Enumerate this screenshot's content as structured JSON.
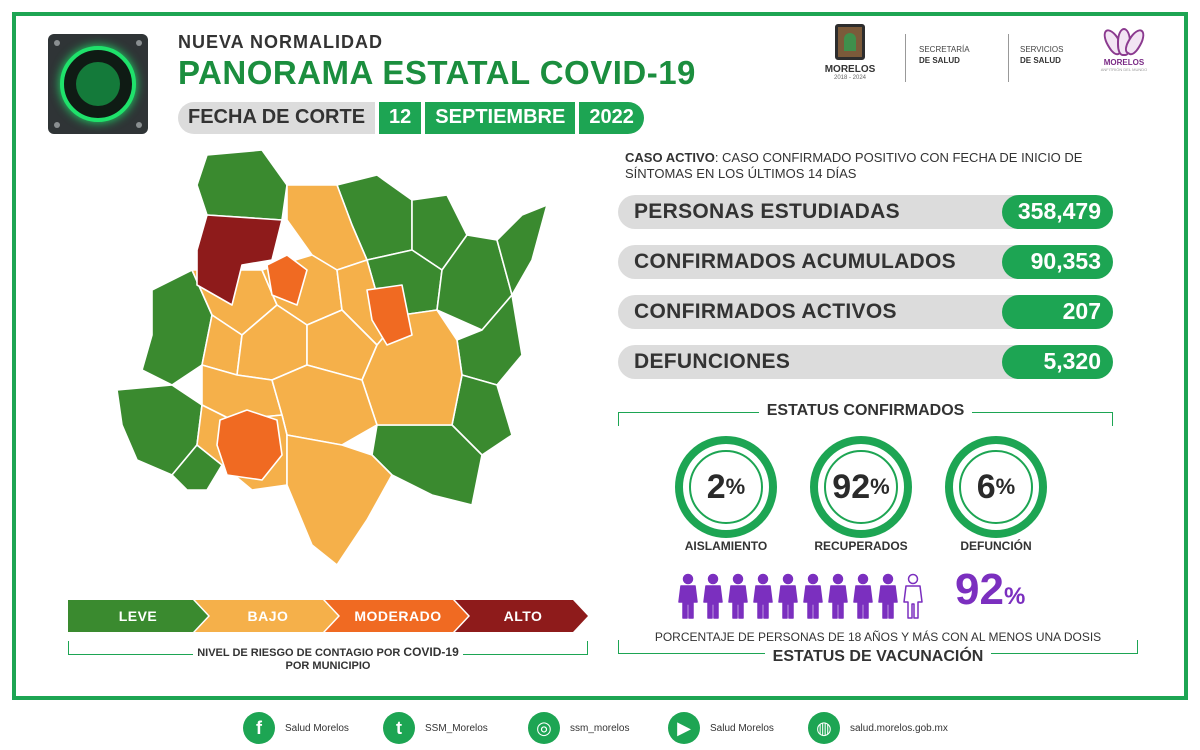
{
  "header": {
    "kicker": "NUEVA  NORMALIDAD",
    "title": "PANORAMA ESTATAL COVID-19",
    "fecha_label": "FECHA DE CORTE",
    "fecha_day": "12",
    "fecha_month": "SEPTIEMBRE",
    "fecha_year": "2022"
  },
  "logos": {
    "morelos_name": "MORELOS",
    "morelos_years": "2018 - 2024",
    "secretaria_line1": "SECRETARÍA",
    "secretaria_line2": "DE SALUD",
    "servicios_line1": "SERVICIOS",
    "servicios_line2": "DE SALUD",
    "flower_name": "MORELOS",
    "flower_sub": "ANFITRIÓN DEL MUNDO"
  },
  "caso_activo": {
    "term": "CASO ACTIVO",
    "definition": ": CASO CONFIRMADO POSITIVO CON FECHA DE INICIO DE SÍNTOMAS EN LOS ÚLTIMOS 14 DÍAS"
  },
  "stats": [
    {
      "label": "PERSONAS ESTUDIADAS",
      "value": "358,479"
    },
    {
      "label": "CONFIRMADOS ACUMULADOS",
      "value": "90,353"
    },
    {
      "label": "CONFIRMADOS ACTIVOS",
      "value": "207"
    },
    {
      "label": "DEFUNCIONES",
      "value": "5,320"
    }
  ],
  "estatus": {
    "title": "ESTATUS CONFIRMADOS",
    "items": [
      {
        "value": "2",
        "unit": "%",
        "label": "AISLAMIENTO"
      },
      {
        "value": "92",
        "unit": "%",
        "label": "RECUPERADOS"
      },
      {
        "value": "6",
        "unit": "%",
        "label": "DEFUNCIÓN"
      }
    ]
  },
  "vacunacion": {
    "value": "92",
    "unit": "%",
    "filled_people": 9,
    "total_people": 10,
    "description": "PORCENTAJE DE PERSONAS DE 18 AÑOS Y MÁS CON AL MENOS UNA DOSIS",
    "title": "ESTATUS DE VACUNACIÓN",
    "color": "#7b2fbf"
  },
  "riesgo": {
    "levels": [
      {
        "label": "LEVE",
        "color": "#3a8a2f"
      },
      {
        "label": "BAJO",
        "color": "#f5b04a"
      },
      {
        "label": "MODERADO",
        "color": "#f06a22"
      },
      {
        "label": "ALTO",
        "color": "#8e1b1b"
      }
    ],
    "caption_prefix": "NIVEL DE RIESGO DE CONTAGIO POR ",
    "caption_bold": "COVID-19",
    "caption_line2": "POR MUNICIPIO"
  },
  "footer": [
    {
      "icon": "facebook-icon",
      "glyph": "f",
      "text": "Salud Morelos"
    },
    {
      "icon": "twitter-icon",
      "glyph": "t",
      "text": "SSM_Morelos"
    },
    {
      "icon": "instagram-icon",
      "glyph": "◎",
      "text": "ssm_morelos"
    },
    {
      "icon": "youtube-icon",
      "glyph": "▶",
      "text": "Salud Morelos"
    },
    {
      "icon": "web-icon",
      "glyph": "◍",
      "text": "salud.morelos.gob.mx"
    }
  ]
}
